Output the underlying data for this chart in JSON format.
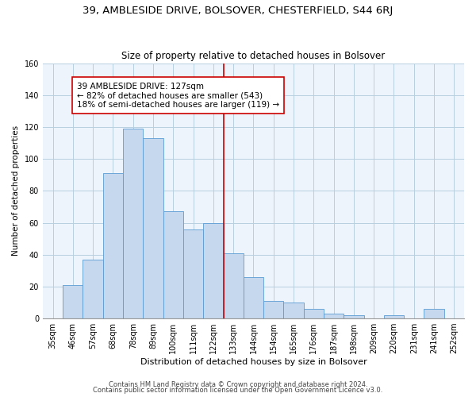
{
  "title1": "39, AMBLESIDE DRIVE, BOLSOVER, CHESTERFIELD, S44 6RJ",
  "title2": "Size of property relative to detached houses in Bolsover",
  "xlabel": "Distribution of detached houses by size in Bolsover",
  "ylabel": "Number of detached properties",
  "bar_labels": [
    "35sqm",
    "46sqm",
    "57sqm",
    "68sqm",
    "78sqm",
    "89sqm",
    "100sqm",
    "111sqm",
    "122sqm",
    "133sqm",
    "144sqm",
    "154sqm",
    "165sqm",
    "176sqm",
    "187sqm",
    "198sqm",
    "209sqm",
    "220sqm",
    "231sqm",
    "241sqm",
    "252sqm"
  ],
  "bar_values": [
    0,
    21,
    37,
    91,
    119,
    113,
    67,
    56,
    60,
    41,
    26,
    11,
    10,
    6,
    3,
    2,
    0,
    2,
    0,
    6,
    0
  ],
  "bar_color": "#c5d8ed",
  "bar_edge_color": "#5b9bd5",
  "vline_x": 8.5,
  "vline_color": "#cc0000",
  "annotation_text": "39 AMBLESIDE DRIVE: 127sqm\n← 82% of detached houses are smaller (543)\n18% of semi-detached houses are larger (119) →",
  "annotation_box_color": "#ffffff",
  "annotation_box_edge": "#cc0000",
  "ylim": [
    0,
    160
  ],
  "yticks": [
    0,
    20,
    40,
    60,
    80,
    100,
    120,
    140,
    160
  ],
  "footer1": "Contains HM Land Registry data © Crown copyright and database right 2024.",
  "footer2": "Contains public sector information licensed under the Open Government Licence v3.0.",
  "title1_fontsize": 9.5,
  "title2_fontsize": 8.5,
  "xlabel_fontsize": 8,
  "ylabel_fontsize": 7.5,
  "tick_fontsize": 7,
  "annotation_fontsize": 7.5,
  "footer_fontsize": 6
}
